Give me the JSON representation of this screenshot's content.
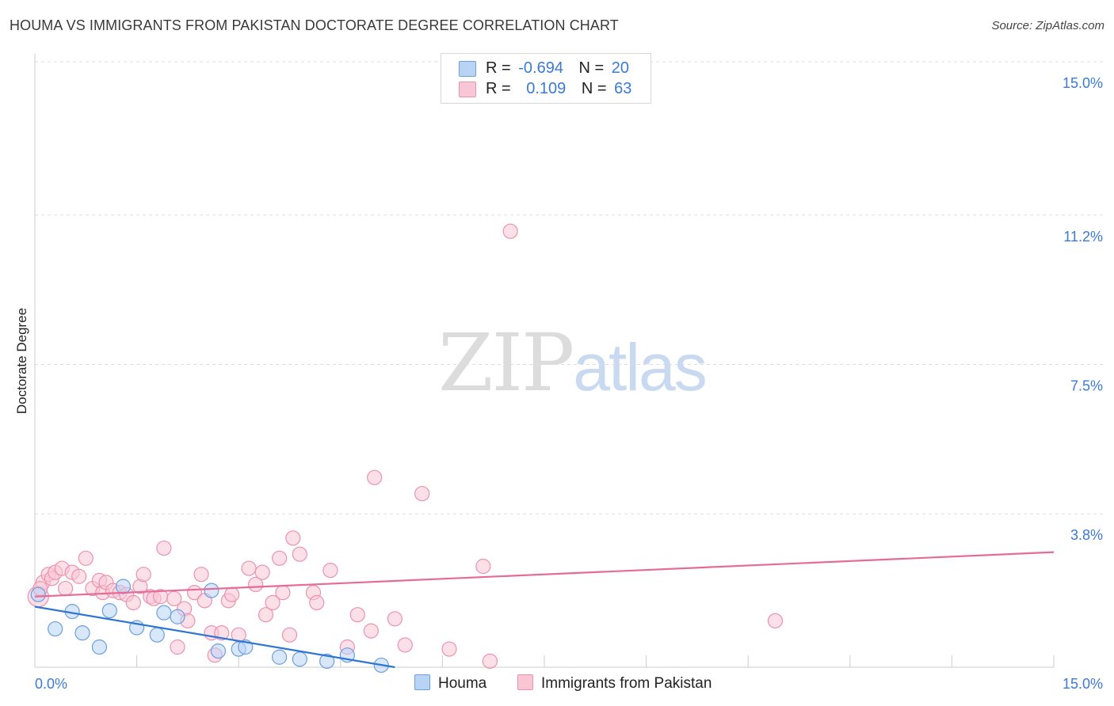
{
  "title": "HOUMA VS IMMIGRANTS FROM PAKISTAN DOCTORATE DEGREE CORRELATION CHART",
  "source": "Source: ZipAtlas.com",
  "watermark": {
    "zip": "ZIP",
    "atlas": "atlas"
  },
  "colors": {
    "houma_fill": "#b9d3f5",
    "houma_stroke": "#6a9fe0",
    "houma_line": "#2e76d2",
    "pak_fill": "#f9c6d6",
    "pak_stroke": "#eb92b0",
    "pak_line": "#e56c97",
    "axis_text": "#3a7bd5",
    "grid": "#dddddd"
  },
  "legend_top": [
    {
      "r_label": "R =",
      "r_value": "-0.694",
      "n_label": "N =",
      "n_value": "20"
    },
    {
      "r_label": "R =",
      "r_value": "0.109",
      "n_label": "N =",
      "n_value": "63"
    }
  ],
  "chart_data": {
    "type": "scatter",
    "title": "HOUMA VS IMMIGRANTS FROM PAKISTAN DOCTORATE DEGREE CORRELATION CHART",
    "xlabel": "",
    "ylabel": "Doctorate Degree",
    "xlim": [
      0,
      15
    ],
    "ylim": [
      0,
      15
    ],
    "x_tick_labels": [
      "0.0%",
      "15.0%"
    ],
    "y_ticks": [
      3.8,
      7.5,
      11.2,
      15.0
    ],
    "y_tick_labels": [
      "3.8%",
      "7.5%",
      "11.2%",
      "15.0%"
    ],
    "series": [
      {
        "name": "Houma",
        "r": -0.694,
        "n": 20,
        "trend": {
          "x": [
            0.0,
            5.3
          ],
          "y": [
            1.5,
            0.0
          ]
        },
        "points": [
          [
            0.05,
            1.8
          ],
          [
            0.3,
            0.95
          ],
          [
            0.55,
            1.38
          ],
          [
            0.7,
            0.85
          ],
          [
            0.95,
            0.5
          ],
          [
            1.1,
            1.4
          ],
          [
            1.3,
            2.0
          ],
          [
            1.5,
            0.98
          ],
          [
            1.8,
            0.8
          ],
          [
            1.9,
            1.35
          ],
          [
            2.1,
            1.25
          ],
          [
            2.6,
            1.9
          ],
          [
            2.7,
            0.4
          ],
          [
            3.0,
            0.45
          ],
          [
            3.1,
            0.5
          ],
          [
            3.6,
            0.25
          ],
          [
            3.9,
            0.2
          ],
          [
            4.3,
            0.15
          ],
          [
            4.6,
            0.3
          ],
          [
            5.1,
            0.05
          ]
        ]
      },
      {
        "name": "Immigrants from Pakistan",
        "r": 0.109,
        "n": 63,
        "trend": {
          "x": [
            0.0,
            15.0
          ],
          "y": [
            1.75,
            2.85
          ]
        },
        "points": [
          [
            0.05,
            1.75
          ],
          [
            0.12,
            2.1
          ],
          [
            0.2,
            2.3
          ],
          [
            0.25,
            2.2
          ],
          [
            0.3,
            2.35
          ],
          [
            0.4,
            2.45
          ],
          [
            0.45,
            1.95
          ],
          [
            0.55,
            2.35
          ],
          [
            0.65,
            2.25
          ],
          [
            0.75,
            2.7
          ],
          [
            0.85,
            1.95
          ],
          [
            0.95,
            2.15
          ],
          [
            1.0,
            1.85
          ],
          [
            1.05,
            2.1
          ],
          [
            1.15,
            1.9
          ],
          [
            1.25,
            1.85
          ],
          [
            1.35,
            1.8
          ],
          [
            1.45,
            1.6
          ],
          [
            1.55,
            2.0
          ],
          [
            1.6,
            2.3
          ],
          [
            1.7,
            1.75
          ],
          [
            1.75,
            1.7
          ],
          [
            1.85,
            1.75
          ],
          [
            1.9,
            2.95
          ],
          [
            2.05,
            1.7
          ],
          [
            2.1,
            0.5
          ],
          [
            2.2,
            1.45
          ],
          [
            2.25,
            1.15
          ],
          [
            2.35,
            1.85
          ],
          [
            2.45,
            2.3
          ],
          [
            2.5,
            1.65
          ],
          [
            2.6,
            0.85
          ],
          [
            2.65,
            0.3
          ],
          [
            2.75,
            0.85
          ],
          [
            2.85,
            1.65
          ],
          [
            2.9,
            1.8
          ],
          [
            3.0,
            0.8
          ],
          [
            3.15,
            2.45
          ],
          [
            3.25,
            2.05
          ],
          [
            3.35,
            2.35
          ],
          [
            3.4,
            1.3
          ],
          [
            3.5,
            1.6
          ],
          [
            3.6,
            2.7
          ],
          [
            3.65,
            1.85
          ],
          [
            3.75,
            0.8
          ],
          [
            3.8,
            3.2
          ],
          [
            3.9,
            2.8
          ],
          [
            4.1,
            1.85
          ],
          [
            4.15,
            1.6
          ],
          [
            4.35,
            2.4
          ],
          [
            4.6,
            0.5
          ],
          [
            4.75,
            1.3
          ],
          [
            4.95,
            0.9
          ],
          [
            5.0,
            4.7
          ],
          [
            5.3,
            1.2
          ],
          [
            5.45,
            0.55
          ],
          [
            5.7,
            4.3
          ],
          [
            6.1,
            0.45
          ],
          [
            6.6,
            2.5
          ],
          [
            6.7,
            0.15
          ],
          [
            7.0,
            10.8
          ],
          [
            10.9,
            1.15
          ],
          [
            0.08,
            1.95
          ]
        ]
      }
    ]
  }
}
